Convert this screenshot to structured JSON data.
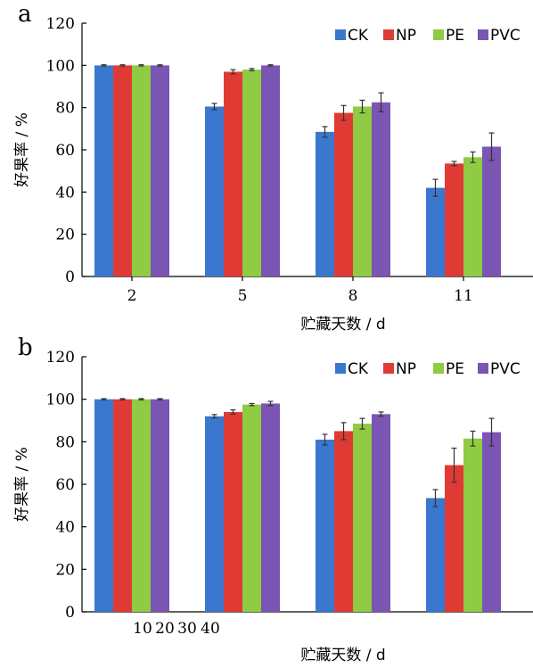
{
  "chart_data": [
    {
      "type": "bar",
      "panel_label": "a",
      "title": "",
      "xlabel": "贮藏天数 / d",
      "ylabel": "好果率 / %",
      "ylim": [
        0,
        120
      ],
      "yticks": [
        0,
        20,
        40,
        60,
        80,
        100,
        120
      ],
      "categories": [
        "2",
        "5",
        "8",
        "11"
      ],
      "legend_position": "top-right",
      "grid": false,
      "series": [
        {
          "name": "CK",
          "color": "#3a78d0",
          "values": [
            100,
            80.5,
            68.5,
            42
          ],
          "errors": [
            0.3,
            1.5,
            2.5,
            4
          ]
        },
        {
          "name": "NP",
          "color": "#e03a35",
          "values": [
            100,
            97,
            77.5,
            53.5
          ],
          "errors": [
            0.3,
            1,
            3.5,
            1
          ]
        },
        {
          "name": "PE",
          "color": "#8fcb43",
          "values": [
            100,
            98,
            80.5,
            56.5
          ],
          "errors": [
            0.3,
            0.5,
            3,
            2.5
          ]
        },
        {
          "name": "PVC",
          "color": "#7b55b4",
          "values": [
            100,
            100,
            82.5,
            61.5
          ],
          "errors": [
            0.3,
            0.3,
            4.5,
            6.5
          ]
        }
      ]
    },
    {
      "type": "bar",
      "panel_label": "b",
      "title": "",
      "xlabel": "贮藏天数 / d",
      "ylabel": "好果率 / %",
      "ylim": [
        0,
        120
      ],
      "yticks": [
        0,
        20,
        40,
        60,
        80,
        100,
        120
      ],
      "categories": [
        "10",
        "20",
        "30",
        "40"
      ],
      "legend_position": "top-right",
      "grid": false,
      "series": [
        {
          "name": "CK",
          "color": "#3a78d0",
          "values": [
            100,
            92,
            81,
            53.5
          ],
          "errors": [
            0.3,
            0.8,
            2.5,
            4
          ]
        },
        {
          "name": "NP",
          "color": "#e03a35",
          "values": [
            100,
            94,
            85,
            69
          ],
          "errors": [
            0.3,
            1,
            4,
            8
          ]
        },
        {
          "name": "PE",
          "color": "#8fcb43",
          "values": [
            100,
            97.5,
            88.5,
            81.5
          ],
          "errors": [
            0.3,
            0.5,
            2.5,
            3.5
          ]
        },
        {
          "name": "PVC",
          "color": "#7b55b4",
          "values": [
            100,
            98,
            93,
            84.5
          ],
          "errors": [
            0.3,
            1,
            1,
            6.5
          ]
        }
      ]
    }
  ]
}
